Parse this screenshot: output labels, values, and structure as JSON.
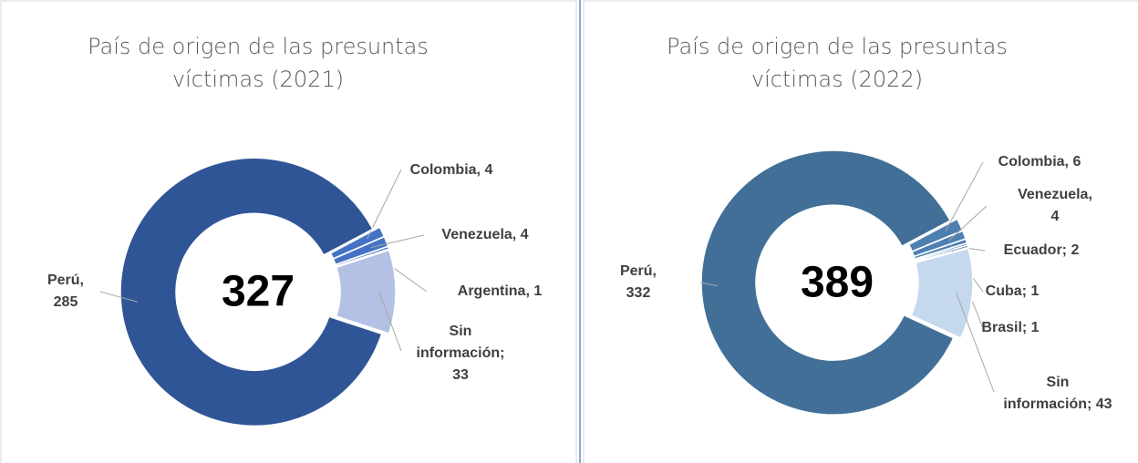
{
  "chart_data": [
    {
      "type": "donut",
      "title": "País de origen de las presuntas víctimas (2021)",
      "total": 327,
      "values": [
        4,
        4,
        1,
        33,
        285
      ],
      "value_labels": [
        "Colombia, 4",
        "Venezuela, 4",
        "Argentina, 1",
        "Sin información; 33",
        "Perú, 285"
      ],
      "colors": [
        "#4472c4",
        "#4472c4",
        "#4472c4",
        "#b4c0e4",
        "#2f5596"
      ],
      "first_slice_angle": 62
    },
    {
      "type": "donut",
      "title": "País de origen de las presuntas víctimas (2022)",
      "total": 389,
      "values": [
        6,
        4,
        2,
        1,
        1,
        43,
        332
      ],
      "value_labels": [
        "Colombia, 6",
        "Venezuela, 4",
        "Ecuador; 2",
        "Cuba; 1",
        "Brasil; 1",
        "Sin información; 43",
        "Perú, 332"
      ],
      "colors": [
        "#4e7fb1",
        "#4e7fb1",
        "#4e7fb1",
        "#4e7fb1",
        "#4e7fb1",
        "#c5d8ee",
        "#416f97"
      ],
      "first_slice_angle": 62
    }
  ]
}
